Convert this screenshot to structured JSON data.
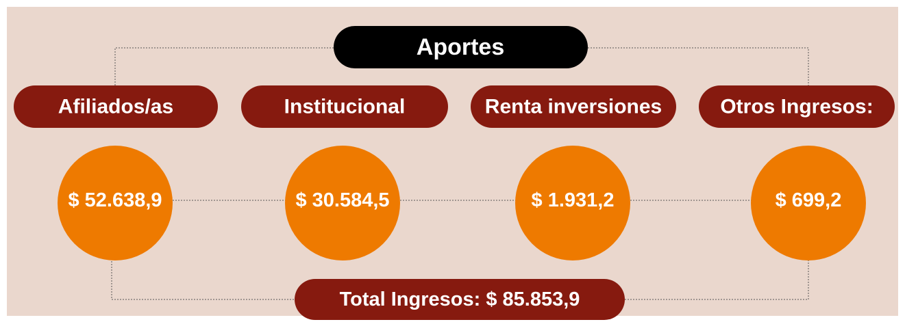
{
  "title": "Aportes",
  "items": [
    {
      "label": "Afiliados/as",
      "value": "$ 52.638,9"
    },
    {
      "label": "Institucional",
      "value": "$ 30.584,5"
    },
    {
      "label": "Renta inversiones",
      "value": "$ 1.931,2"
    },
    {
      "label": "Otros Ingresos:",
      "value": "$ 699,2"
    }
  ],
  "total": "Total Ingresos: $ 85.853,9"
}
